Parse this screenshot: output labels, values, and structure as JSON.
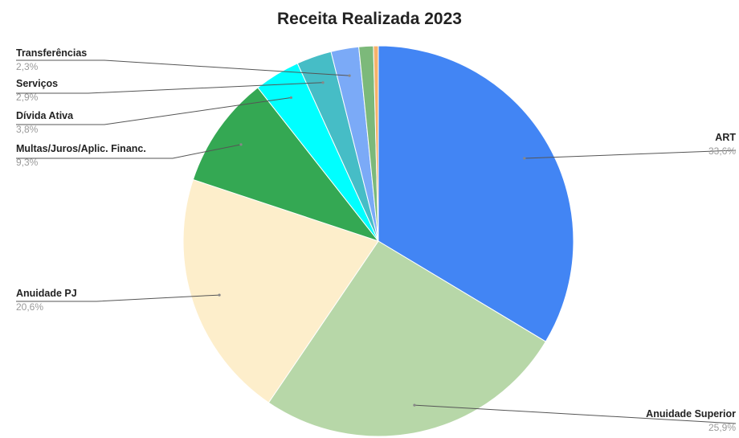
{
  "chart_data": {
    "type": "pie",
    "title": "Receita Realizada 2023",
    "slices": [
      {
        "label": "ART",
        "value": 33.6,
        "value_label": "33,6%",
        "color": "#4285f4"
      },
      {
        "label": "Anuidade Superior",
        "value": 25.9,
        "value_label": "25,9%",
        "color": "#b7d7a8"
      },
      {
        "label": "Anuidade PJ",
        "value": 20.6,
        "value_label": "20,6%",
        "color": "#fdeecb"
      },
      {
        "label": "Multas/Juros/Aplic. Financ.",
        "value": 9.3,
        "value_label": "9,3%",
        "color": "#34a853"
      },
      {
        "label": "Dívida Ativa",
        "value": 3.8,
        "value_label": "3,8%",
        "color": "#00ffff"
      },
      {
        "label": "Serviços",
        "value": 2.9,
        "value_label": "2,9%",
        "color": "#46bdc6"
      },
      {
        "label": "Transferências",
        "value": 2.3,
        "value_label": "2,3%",
        "color": "#7baaf7"
      },
      {
        "label": "",
        "value": 1.2,
        "value_label": "",
        "color": "#7cb97a"
      },
      {
        "label": "",
        "value": 0.4,
        "value_label": "",
        "color": "#f6b26b"
      }
    ],
    "legend": "none (leader-line labels)"
  }
}
